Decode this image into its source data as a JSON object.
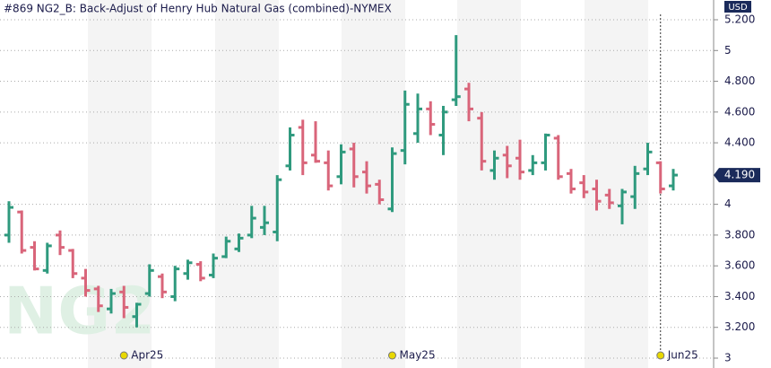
{
  "chart_data": {
    "type": "ohlc",
    "title": "#869 NG2_B: Back-Adjust of Henry Hub Natural Gas (combined)-NYMEX",
    "unit": "USD",
    "watermark": "NG2",
    "categories": [
      null,
      null,
      null,
      null,
      null,
      null,
      null,
      null,
      null,
      "Apr25",
      null,
      null,
      null,
      null,
      null,
      null,
      null,
      null,
      null,
      null,
      null,
      null,
      null,
      null,
      null,
      null,
      null,
      null,
      null,
      null,
      "May25",
      null,
      null,
      null,
      null,
      null,
      null,
      null,
      null,
      null,
      null,
      null,
      null,
      null,
      null,
      null,
      null,
      null,
      null,
      null,
      null,
      "Jun25",
      null
    ],
    "open": [
      3.8,
      3.95,
      3.72,
      3.57,
      3.8,
      3.7,
      3.52,
      3.45,
      3.32,
      3.43,
      3.27,
      3.42,
      3.53,
      3.4,
      3.55,
      3.61,
      3.54,
      3.66,
      3.71,
      3.8,
      3.85,
      3.82,
      4.25,
      4.5,
      4.32,
      4.27,
      4.18,
      4.36,
      4.21,
      4.13,
      3.97,
      4.35,
      4.46,
      4.62,
      4.45,
      4.68,
      4.75,
      4.56,
      4.22,
      4.32,
      4.3,
      4.22,
      4.27,
      4.43,
      4.2,
      4.14,
      4.1,
      4.06,
      3.99,
      4.05,
      4.23,
      4.27,
      4.12
    ],
    "high": [
      4.02,
      3.96,
      3.76,
      3.75,
      3.83,
      3.71,
      3.58,
      3.47,
      3.45,
      3.47,
      3.36,
      3.61,
      3.55,
      3.6,
      3.64,
      3.63,
      3.68,
      3.79,
      3.81,
      3.99,
      3.99,
      4.19,
      4.5,
      4.55,
      4.54,
      4.35,
      4.39,
      4.4,
      4.28,
      4.16,
      4.37,
      4.74,
      4.72,
      4.67,
      4.64,
      5.1,
      4.79,
      4.6,
      4.35,
      4.38,
      4.42,
      4.32,
      4.46,
      4.45,
      4.23,
      4.19,
      4.16,
      4.1,
      4.1,
      4.25,
      4.4,
      4.28,
      4.23
    ],
    "low": [
      3.75,
      3.68,
      3.57,
      3.55,
      3.67,
      3.52,
      3.4,
      3.3,
      3.29,
      3.26,
      3.2,
      3.4,
      3.39,
      3.37,
      3.51,
      3.5,
      3.52,
      3.65,
      3.69,
      3.78,
      3.8,
      3.76,
      4.22,
      4.19,
      4.27,
      4.09,
      4.13,
      4.11,
      4.07,
      4.0,
      3.95,
      4.26,
      4.4,
      4.45,
      4.32,
      4.64,
      4.54,
      4.22,
      4.16,
      4.17,
      4.16,
      4.19,
      4.22,
      4.16,
      4.07,
      4.04,
      3.96,
      3.97,
      3.87,
      3.97,
      4.19,
      4.07,
      4.09
    ],
    "close": [
      3.98,
      3.7,
      3.58,
      3.73,
      3.72,
      3.55,
      3.44,
      3.34,
      3.42,
      3.33,
      3.35,
      3.57,
      3.43,
      3.58,
      3.62,
      3.52,
      3.65,
      3.76,
      3.78,
      3.91,
      3.88,
      4.16,
      4.45,
      4.27,
      4.28,
      4.12,
      4.34,
      4.18,
      4.12,
      4.03,
      4.33,
      4.65,
      4.62,
      4.52,
      4.6,
      4.7,
      4.62,
      4.28,
      4.3,
      4.25,
      4.21,
      4.27,
      4.45,
      4.18,
      4.1,
      4.08,
      4.02,
      4.01,
      4.08,
      4.2,
      4.34,
      4.1,
      4.19
    ],
    "up_color": "#2f9a7e",
    "down_color": "#d9657a",
    "ylim": [
      3,
      5.3
    ],
    "yticks": [
      3,
      {
        "value": 3.2,
        "label": "3.200"
      },
      {
        "value": 3.4,
        "label": "3.400"
      },
      {
        "value": 3.6,
        "label": "3.600"
      },
      {
        "value": 3.8,
        "label": "3.800"
      },
      4,
      {
        "value": 4.4,
        "label": "4.400"
      },
      {
        "value": 4.6,
        "label": "4.600"
      },
      {
        "value": 4.8,
        "label": "4.800"
      },
      5,
      {
        "value": 5.2,
        "label": "5.200"
      }
    ],
    "last_price": {
      "value": 4.19,
      "label": "4.190"
    },
    "grid": true
  }
}
